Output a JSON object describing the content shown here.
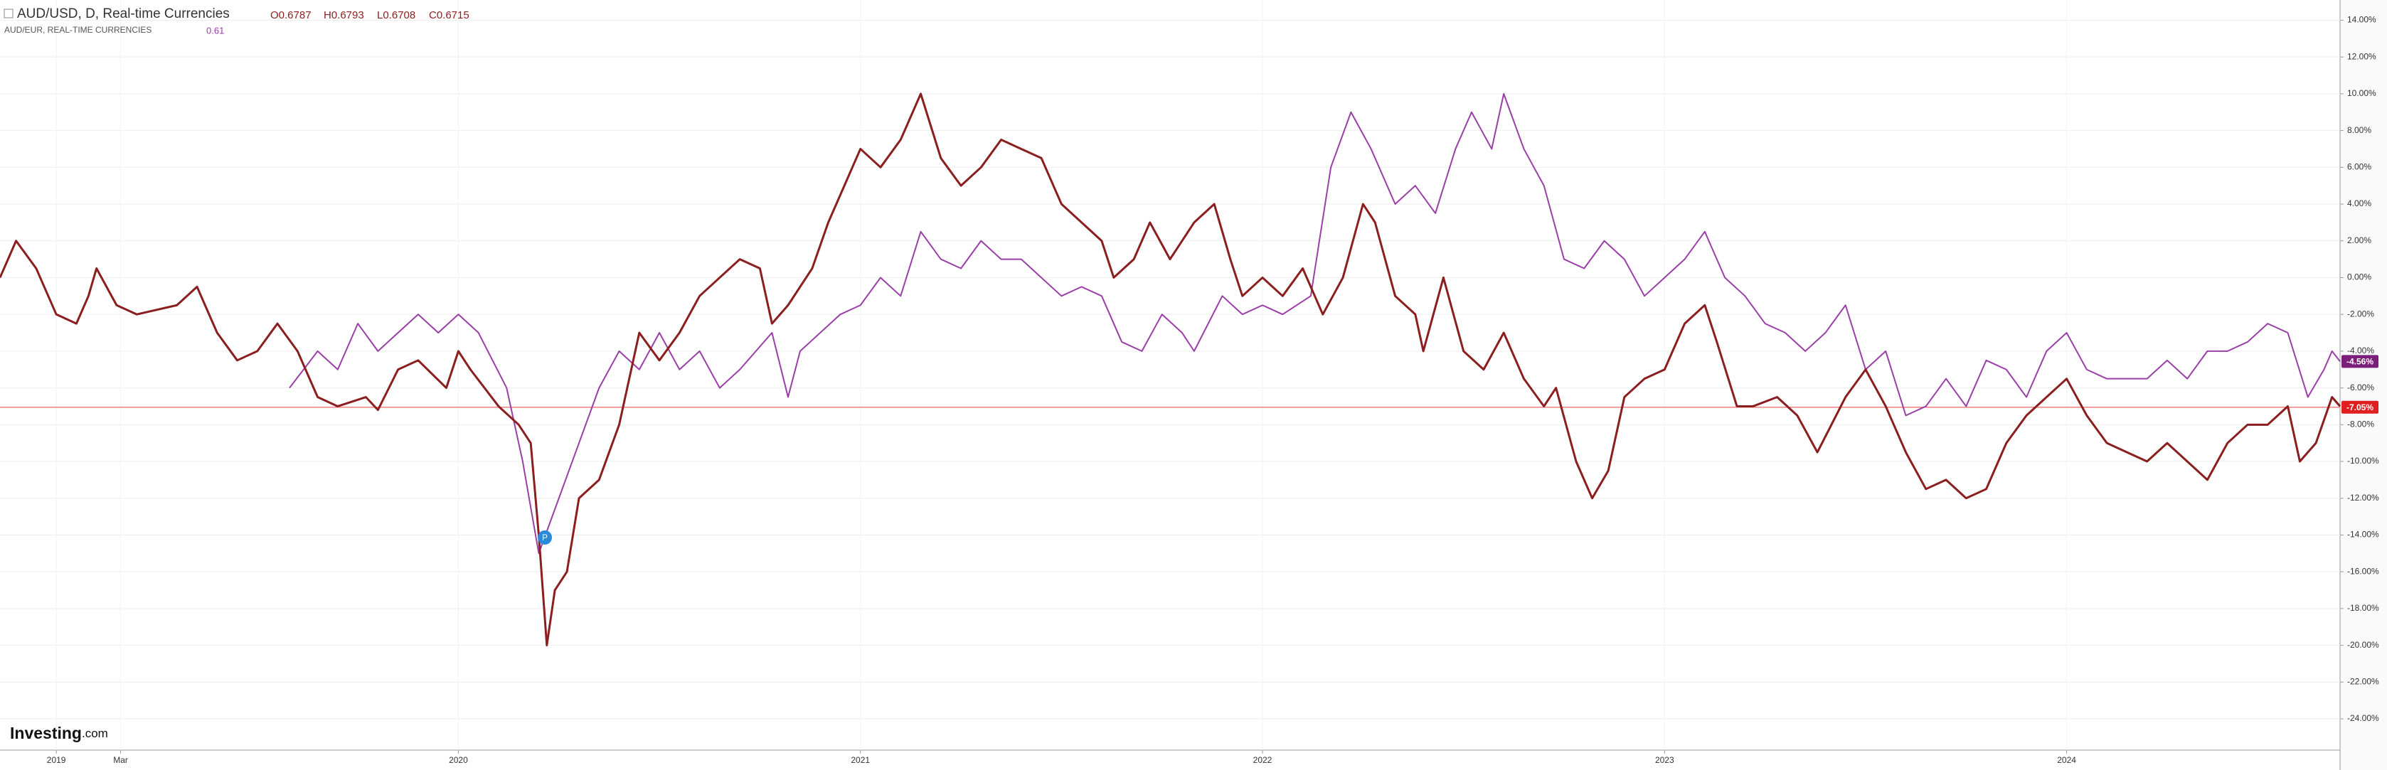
{
  "chart_data": {
    "type": "line",
    "header": {
      "ohlc": [
        "O0.6787",
        "H0.6793",
        "L0.6708",
        "C0.6715"
      ],
      "compare_value": "0.61"
    },
    "logo": {
      "brand": "Investing",
      "suffix": ".com"
    },
    "series": [
      {
        "name": "AUD/USD, D, Real-time Currencies",
        "color": "#8b1e1e",
        "width": 3,
        "x": [
          2018.86,
          2018.9,
          2018.95,
          2019.0,
          2019.05,
          2019.08,
          2019.1,
          2019.15,
          2019.2,
          2019.3,
          2019.35,
          2019.4,
          2019.45,
          2019.5,
          2019.55,
          2019.6,
          2019.65,
          2019.7,
          2019.77,
          2019.8,
          2019.85,
          2019.9,
          2019.97,
          2020.0,
          2020.03,
          2020.1,
          2020.15,
          2020.18,
          2020.2,
          2020.22,
          2020.24,
          2020.27,
          2020.3,
          2020.35,
          2020.4,
          2020.45,
          2020.5,
          2020.55,
          2020.6,
          2020.65,
          2020.7,
          2020.75,
          2020.78,
          2020.82,
          2020.88,
          2020.92,
          2021.0,
          2021.05,
          2021.1,
          2021.15,
          2021.2,
          2021.25,
          2021.3,
          2021.35,
          2021.4,
          2021.45,
          2021.5,
          2021.55,
          2021.6,
          2021.63,
          2021.68,
          2021.72,
          2021.77,
          2021.83,
          2021.88,
          2021.92,
          2021.95,
          2022.0,
          2022.05,
          2022.1,
          2022.15,
          2022.2,
          2022.25,
          2022.28,
          2022.33,
          2022.38,
          2022.4,
          2022.45,
          2022.5,
          2022.55,
          2022.6,
          2022.65,
          2022.7,
          2022.73,
          2022.78,
          2022.82,
          2022.86,
          2022.9,
          2022.95,
          2023.0,
          2023.05,
          2023.1,
          2023.13,
          2023.18,
          2023.22,
          2023.28,
          2023.33,
          2023.38,
          2023.45,
          2023.5,
          2023.55,
          2023.6,
          2023.65,
          2023.7,
          2023.75,
          2023.8,
          2023.85,
          2023.9,
          2023.95,
          2024.0,
          2024.05,
          2024.1,
          2024.15,
          2024.2,
          2024.25,
          2024.3,
          2024.35,
          2024.4,
          2024.45,
          2024.5,
          2024.55,
          2024.58,
          2024.62,
          2024.66,
          2024.68
        ],
        "values": [
          0,
          2,
          0.5,
          -2,
          -2.5,
          -1,
          0.5,
          -1.5,
          -2,
          -1.5,
          -0.5,
          -3,
          -4.5,
          -4,
          -2.5,
          -4,
          -6.5,
          -7,
          -6.5,
          -7.2,
          -5,
          -4.5,
          -6,
          -4,
          -5,
          -7,
          -8,
          -9,
          -14,
          -20,
          -17,
          -16,
          -12,
          -11,
          -8,
          -3,
          -4.5,
          -3,
          -1,
          0,
          1,
          0.5,
          -2.5,
          -1.5,
          0.5,
          3,
          7,
          6,
          7.5,
          10,
          6.5,
          5,
          6,
          7.5,
          7,
          6.5,
          4,
          3,
          2,
          0,
          1,
          3,
          1,
          3,
          4,
          1,
          -1,
          0,
          -1,
          0.5,
          -2,
          0,
          4,
          3,
          -1,
          -2,
          -4,
          0,
          -4,
          -5,
          -3,
          -5.5,
          -7,
          -6,
          -10,
          -12,
          -10.5,
          -6.5,
          -5.5,
          -5,
          -2.5,
          -1.5,
          -3.5,
          -7,
          -7,
          -6.5,
          -7.5,
          -9.5,
          -6.5,
          -5,
          -7,
          -9.5,
          -11.5,
          -11,
          -12,
          -11.5,
          -9,
          -7.5,
          -6.5,
          -5.5,
          -7.5,
          -9,
          -9.5,
          -10,
          -9,
          -10,
          -11,
          -9,
          -8,
          -8,
          -7,
          -10,
          -9,
          -6.5,
          -7
        ]
      },
      {
        "name": "AUD/EUR, REAL-TIME CURRENCIES",
        "color": "#9b3fa8",
        "width": 2,
        "x": [
          2019.58,
          2019.65,
          2019.7,
          2019.75,
          2019.8,
          2019.85,
          2019.9,
          2019.95,
          2020.0,
          2020.05,
          2020.12,
          2020.16,
          2020.2,
          2020.25,
          2020.3,
          2020.35,
          2020.4,
          2020.45,
          2020.5,
          2020.55,
          2020.6,
          2020.65,
          2020.7,
          2020.78,
          2020.82,
          2020.85,
          2020.9,
          2020.95,
          2021.0,
          2021.05,
          2021.1,
          2021.15,
          2021.2,
          2021.25,
          2021.3,
          2021.35,
          2021.4,
          2021.45,
          2021.5,
          2021.55,
          2021.6,
          2021.65,
          2021.7,
          2021.75,
          2021.8,
          2021.83,
          2021.9,
          2021.95,
          2022.0,
          2022.05,
          2022.12,
          2022.17,
          2022.22,
          2022.27,
          2022.33,
          2022.38,
          2022.43,
          2022.48,
          2022.52,
          2022.57,
          2022.6,
          2022.65,
          2022.7,
          2022.75,
          2022.8,
          2022.85,
          2022.9,
          2022.95,
          2023.0,
          2023.05,
          2023.1,
          2023.15,
          2023.2,
          2023.25,
          2023.3,
          2023.35,
          2023.4,
          2023.45,
          2023.5,
          2023.55,
          2023.6,
          2023.65,
          2023.7,
          2023.75,
          2023.8,
          2023.85,
          2023.9,
          2023.95,
          2024.0,
          2024.05,
          2024.1,
          2024.15,
          2024.2,
          2024.25,
          2024.3,
          2024.35,
          2024.4,
          2024.45,
          2024.5,
          2024.55,
          2024.6,
          2024.64,
          2024.66,
          2024.68
        ],
        "values": [
          -6,
          -4,
          -5,
          -2.5,
          -4,
          -3,
          -2,
          -3,
          -2,
          -3,
          -6,
          -10,
          -15,
          -12,
          -9,
          -6,
          -4,
          -5,
          -3,
          -5,
          -4,
          -6,
          -5,
          -3,
          -6.5,
          -4,
          -3,
          -2,
          -1.5,
          0,
          -1,
          2.5,
          1,
          0.5,
          2,
          1,
          1,
          0,
          -1,
          -0.5,
          -1,
          -3.5,
          -4,
          -2,
          -3,
          -4,
          -1,
          -2,
          -1.5,
          -2,
          -1,
          6,
          9,
          7,
          4,
          5,
          3.5,
          7,
          9,
          7,
          10,
          7,
          5,
          1,
          0.5,
          2,
          1,
          -1,
          0,
          1,
          2.5,
          0,
          -1,
          -2.5,
          -3,
          -4,
          -3,
          -1.5,
          -5,
          -4,
          -7.5,
          -7,
          -5.5,
          -7,
          -4.5,
          -5,
          -6.5,
          -4,
          -3,
          -5,
          -5.5,
          -5.5,
          -5.5,
          -4.5,
          -5.5,
          -4,
          -4,
          -3.5,
          -2.5,
          -3,
          -6.5,
          -5,
          -4,
          -4.56
        ]
      }
    ],
    "last_labels": [
      {
        "value": -4.56,
        "label": "-4.56%",
        "color": "#7a1f7a"
      },
      {
        "value": -7.05,
        "label": "-7.05%",
        "color": "#e02020"
      }
    ],
    "price_line": -7.05,
    "xlim": [
      2018.86,
      2024.68
    ],
    "xticks": [
      {
        "value": 2019,
        "label": "2019"
      },
      {
        "value": 2019.16,
        "label": "Mar"
      },
      {
        "value": 2020,
        "label": "2020"
      },
      {
        "value": 2021,
        "label": "2021"
      },
      {
        "value": 2022,
        "label": "2022"
      },
      {
        "value": 2023,
        "label": "2023"
      },
      {
        "value": 2024,
        "label": "2024"
      }
    ],
    "ylim": [
      -25.7,
      15.1
    ],
    "yticks": [
      {
        "value": 14,
        "label": "14.00%"
      },
      {
        "value": 12,
        "label": "12.00%"
      },
      {
        "value": 10,
        "label": "10.00%"
      },
      {
        "value": 8,
        "label": "8.00%"
      },
      {
        "value": 6,
        "label": "6.00%"
      },
      {
        "value": 4,
        "label": "4.00%"
      },
      {
        "value": 2,
        "label": "2.00%"
      },
      {
        "value": 0,
        "label": "0.00%"
      },
      {
        "value": -2,
        "label": "-2.00%"
      },
      {
        "value": -4,
        "label": "-4.00%"
      },
      {
        "value": -6,
        "label": "-6.00%"
      },
      {
        "value": -8,
        "label": "-8.00%"
      },
      {
        "value": -10,
        "label": "-10.00%"
      },
      {
        "value": -12,
        "label": "-12.00%"
      },
      {
        "value": -14,
        "label": "-14.00%"
      },
      {
        "value": -16,
        "label": "-16.00%"
      },
      {
        "value": -18,
        "label": "-18.00%"
      },
      {
        "value": -20,
        "label": "-20.00%"
      },
      {
        "value": -22,
        "label": "-22.00%"
      },
      {
        "value": -24,
        "label": "-24.00%"
      }
    ],
    "grid": true
  }
}
